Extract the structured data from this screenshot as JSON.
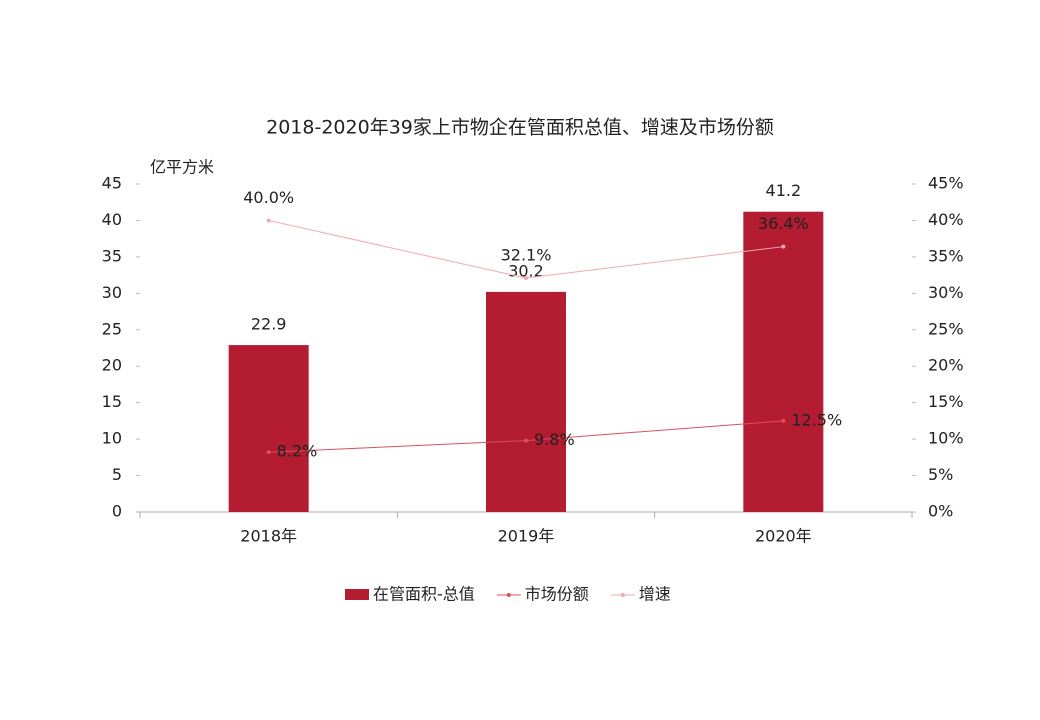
{
  "chart_data": {
    "type": "bar",
    "title": "2018-2020年39家上市物企在管面积总值、增速及市场份额",
    "y_label": "亿平方米",
    "categories": [
      "2018年",
      "2019年",
      "2020年"
    ],
    "series": [
      {
        "name": "在管面积-总值",
        "type": "bar",
        "axis": "y",
        "color": "#b31c31",
        "values": [
          22.9,
          30.2,
          41.2
        ]
      },
      {
        "name": "市场份额",
        "type": "line",
        "axis": "y2",
        "color": "#d9505c",
        "values": [
          8.2,
          9.8,
          12.5
        ],
        "value_labels": [
          "8.2%",
          "9.8%",
          "12.5%"
        ]
      },
      {
        "name": "增速",
        "type": "line",
        "axis": "y2",
        "color": "#f2a7b1",
        "values": [
          40.0,
          32.1,
          36.4
        ],
        "value_labels": [
          "40.0%",
          "32.1%",
          "36.4%"
        ]
      }
    ],
    "ylim": [
      0,
      45
    ],
    "yticks": [
      0,
      5,
      10,
      15,
      20,
      25,
      30,
      35,
      40,
      45
    ],
    "y2lim": [
      0,
      45
    ],
    "y2ticks": [
      {
        "value": 0,
        "label": "0%"
      },
      {
        "value": 5,
        "label": "5%"
      },
      {
        "value": 10,
        "label": "10%"
      },
      {
        "value": 15,
        "label": "15%"
      },
      {
        "value": 20,
        "label": "20%"
      },
      {
        "value": 25,
        "label": "25%"
      },
      {
        "value": 30,
        "label": "30%"
      },
      {
        "value": 35,
        "label": "35%"
      },
      {
        "value": 40,
        "label": "40%"
      },
      {
        "value": 45,
        "label": "45%"
      }
    ],
    "legend": "bottom"
  }
}
